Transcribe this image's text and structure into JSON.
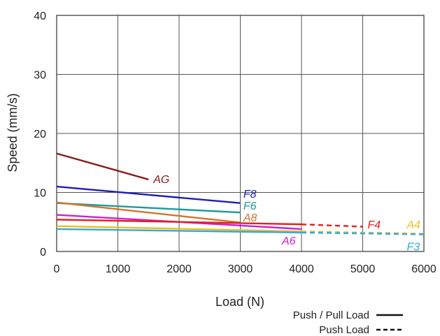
{
  "chart_data": {
    "type": "line",
    "title": "",
    "xlabel": "Load (N)",
    "ylabel": "Speed (mm/s)",
    "xlim": [
      0,
      6000
    ],
    "ylim": [
      0,
      40
    ],
    "xticks": [
      "0",
      "1000",
      "2000",
      "3000",
      "4000",
      "5000",
      "6000"
    ],
    "yticks": [
      "0",
      "10",
      "20",
      "30",
      "40"
    ],
    "grid": true,
    "series": [
      {
        "name": "AG",
        "color": "#8b1a1a",
        "push_pull": [
          [
            0,
            16.6
          ],
          [
            1500,
            12.2
          ]
        ],
        "push": []
      },
      {
        "name": "F8",
        "color": "#1f1fb0",
        "push_pull": [
          [
            0,
            11.0
          ],
          [
            3000,
            8.2
          ]
        ],
        "push": []
      },
      {
        "name": "F6",
        "color": "#1a9a9a",
        "push_pull": [
          [
            0,
            8.2
          ],
          [
            3000,
            6.6
          ]
        ],
        "push": []
      },
      {
        "name": "A8",
        "color": "#d2742c",
        "push_pull": [
          [
            0,
            8.3
          ],
          [
            3000,
            4.9
          ]
        ],
        "push": []
      },
      {
        "name": "A6",
        "color": "#cc22cc",
        "push_pull": [
          [
            0,
            6.2
          ],
          [
            4000,
            3.8
          ]
        ],
        "push": []
      },
      {
        "name": "F4",
        "color": "#e02020",
        "push_pull": [
          [
            0,
            5.4
          ],
          [
            4000,
            4.6
          ]
        ],
        "push": [
          [
            4000,
            4.6
          ],
          [
            5000,
            4.2
          ]
        ]
      },
      {
        "name": "A4",
        "color": "#e8c020",
        "push_pull": [
          [
            0,
            4.3
          ],
          [
            4000,
            3.4
          ]
        ],
        "push": [
          [
            4000,
            3.4
          ],
          [
            6000,
            3.0
          ]
        ]
      },
      {
        "name": "F3",
        "color": "#35a8dc",
        "push_pull": [
          [
            0,
            3.8
          ],
          [
            4000,
            3.2
          ]
        ],
        "push": [
          [
            4000,
            3.2
          ],
          [
            6000,
            2.9
          ]
        ]
      }
    ],
    "labels": [
      {
        "name": "AG",
        "x": 1580,
        "y": 12.3
      },
      {
        "name": "F8",
        "x": 3050,
        "y": 9.8
      },
      {
        "name": "F6",
        "x": 3050,
        "y": 7.8
      },
      {
        "name": "A8",
        "x": 3050,
        "y": 5.8
      },
      {
        "name": "A6",
        "x": 3680,
        "y": 1.9
      },
      {
        "name": "F4",
        "x": 5080,
        "y": 4.6
      },
      {
        "name": "A4",
        "x": 5720,
        "y": 4.6
      },
      {
        "name": "F3",
        "x": 5720,
        "y": 0.9
      }
    ],
    "legend": {
      "position": "bottom-right",
      "entries": [
        {
          "label": "Push / Pull Load",
          "style": "solid"
        },
        {
          "label": "Push Load",
          "style": "dashed"
        }
      ]
    }
  }
}
